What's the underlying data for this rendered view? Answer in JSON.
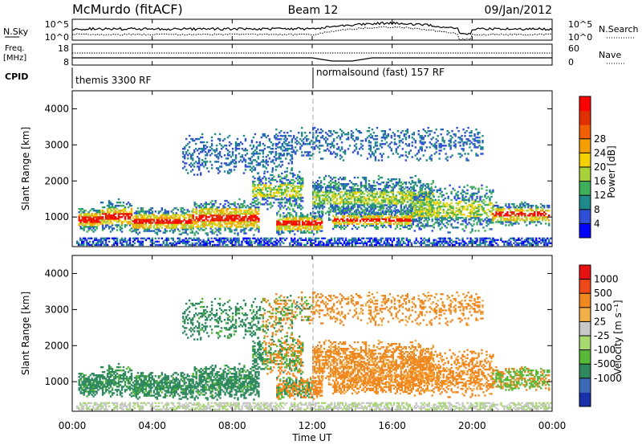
{
  "header": {
    "station": "McMurdo (fitACF)",
    "beam": "Beam 12",
    "date": "09/Jan/2012"
  },
  "noise_panel": {
    "left_label": "N.Sky",
    "right_label": "N.Search",
    "left_ticks": [
      "10^5",
      "10^0"
    ],
    "right_ticks": [
      "10^5",
      "10^0"
    ]
  },
  "freq_panel": {
    "left_label_line1": "Freq.",
    "left_label_line2": "[MHz]",
    "right_label": "Nave",
    "left_ticks": [
      "18",
      "8"
    ],
    "right_ticks": [
      "60",
      "0"
    ]
  },
  "cpid_panel": {
    "label": "CPID",
    "segments": [
      {
        "name": "themis 3300 RF",
        "start_hour": 0
      },
      {
        "name": "normalsound (fast) 157 RF",
        "start_hour": 12
      }
    ]
  },
  "chart_data": [
    {
      "type": "heatmap",
      "name": "Power",
      "ylabel": "Slant Range [km]",
      "ylim": [
        180,
        4500
      ],
      "yticks": [
        "1000",
        "2000",
        "3000",
        "4000"
      ],
      "colorbar_label": "Power [dB]",
      "colorbar_ticks": [
        "4",
        "8",
        "12",
        "16",
        "20",
        "24",
        "28"
      ],
      "colorbar_colors": [
        "#0000ff",
        "#2f4fd8",
        "#1f8a8a",
        "#3fae5a",
        "#a8d23a",
        "#f4d000",
        "#f4a000",
        "#f06000",
        "#e03000",
        "#ff0000"
      ]
    },
    {
      "type": "heatmap",
      "name": "Velocity",
      "ylabel": "Slant Range [km]",
      "ylim": [
        180,
        4500
      ],
      "yticks": [
        "1000",
        "2000",
        "3000",
        "4000"
      ],
      "colorbar_label": "Velocity [m s⁻¹]",
      "colorbar_ticks": [
        "1000",
        "500",
        "100",
        "25",
        "-25",
        "-100",
        "-500",
        "-1000"
      ],
      "colorbar_colors": [
        "#1830a8",
        "#3c6ab8",
        "#2e8a5e",
        "#58b838",
        "#a8d870",
        "#c8c8c8",
        "#f4b048",
        "#f08820",
        "#f04818",
        "#e81010"
      ]
    }
  ],
  "time_axis": {
    "xlabel": "Time UT",
    "xlim": [
      0,
      24
    ],
    "ticks": [
      "00:00",
      "04:00",
      "08:00",
      "12:00",
      "16:00",
      "20:00",
      "00:00"
    ]
  }
}
